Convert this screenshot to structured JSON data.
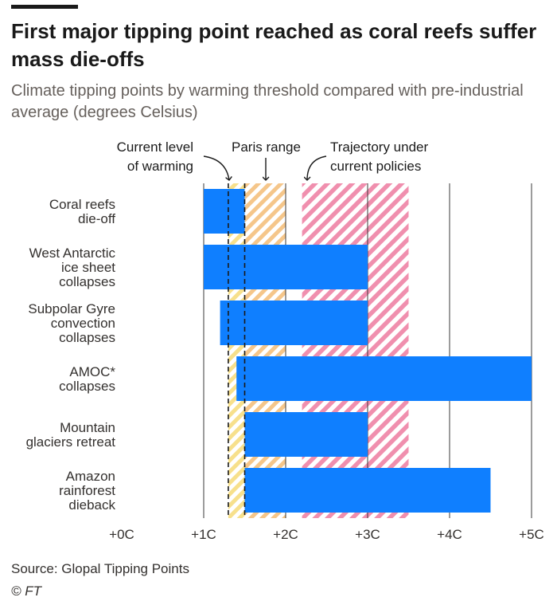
{
  "header": {
    "title": "First major tipping point reached as coral reefs suffer mass die-offs",
    "subtitle": "Climate tipping points by warming threshold compared with pre-industrial average (degrees Celsius)"
  },
  "footer": {
    "source": "Source: Glopal Tipping Points",
    "credit": "© FT"
  },
  "annotations": {
    "current": [
      "Current level",
      "of warming"
    ],
    "paris": [
      "Paris range"
    ],
    "trajectory": [
      "Trajectory under",
      "current policies"
    ]
  },
  "colors": {
    "bar": "#0f7fff",
    "paris_stripe": "#f5c68a",
    "paris_stripe_light": "#f7e08c",
    "trajectory_stripe": "#f08fae",
    "grid": "#3a3a3a",
    "text": "#33302e"
  },
  "chart_data": {
    "type": "bar",
    "orientation": "horizontal",
    "categories": [
      [
        "Coral reefs",
        "die-off"
      ],
      [
        "West Antarctic",
        "ice sheet",
        "collapses"
      ],
      [
        "Subpolar Gyre",
        "convection",
        "collapses"
      ],
      [
        "AMOC*",
        "collapses"
      ],
      [
        "Mountain",
        "glaciers retreat"
      ],
      [
        "Amazon",
        "rainforest",
        "dieback"
      ]
    ],
    "ranges": [
      [
        1.0,
        1.5
      ],
      [
        1.0,
        3.0
      ],
      [
        1.2,
        3.0
      ],
      [
        1.4,
        5.0
      ],
      [
        1.5,
        3.0
      ],
      [
        1.5,
        4.5
      ]
    ],
    "xlim": [
      0,
      5
    ],
    "xticks": [
      0,
      1,
      2,
      3,
      4,
      5
    ],
    "xtick_labels": [
      "+0C",
      "+1C",
      "+2C",
      "+3C",
      "+4C",
      "+5C"
    ],
    "current_warming": 1.3,
    "reference_line": 1.5,
    "paris_range": [
      1.5,
      2.0
    ],
    "trajectory_range": [
      2.2,
      3.5
    ],
    "grid": true
  }
}
